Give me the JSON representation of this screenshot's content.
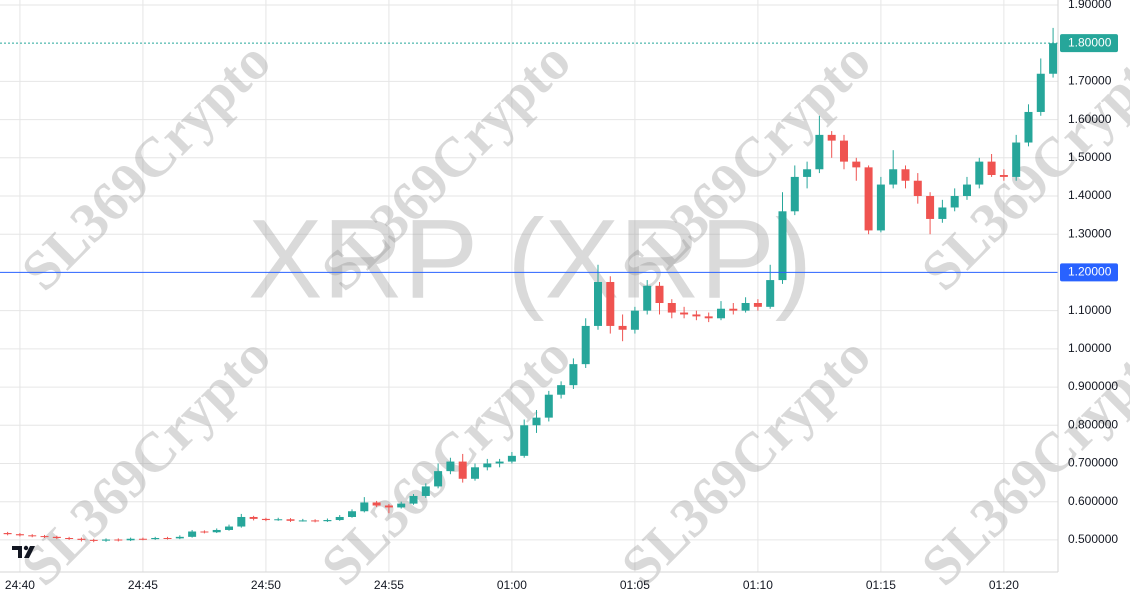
{
  "chart_data": {
    "type": "candlestick",
    "watermark_title": "XRP (XRP)",
    "watermark": "SL369Crypto",
    "up_color": "#26a69a",
    "down_color": "#ef5350",
    "xlim": [
      -0.81,
      42.2
    ],
    "xticks": [
      {
        "value": 0,
        "label": "24:40"
      },
      {
        "value": 5,
        "label": "24:45"
      },
      {
        "value": 10,
        "label": "24:50"
      },
      {
        "value": 15,
        "label": "24:55"
      },
      {
        "value": 20,
        "label": "01:00"
      },
      {
        "value": 25,
        "label": "01:05"
      },
      {
        "value": 30,
        "label": "01:10"
      },
      {
        "value": 35,
        "label": "01:15"
      },
      {
        "value": 40,
        "label": "01:20"
      }
    ],
    "ylim": [
      0.416,
      1.913
    ],
    "yticks": [
      {
        "value": 1.9,
        "label": "1.90000"
      },
      {
        "value": 1.7,
        "label": "1.70000"
      },
      {
        "value": 1.6,
        "label": "1.60000"
      },
      {
        "value": 1.5,
        "label": "1.50000"
      },
      {
        "value": 1.4,
        "label": "1.40000"
      },
      {
        "value": 1.3,
        "label": "1.30000"
      },
      {
        "value": 1.1,
        "label": "1.10000"
      },
      {
        "value": 1.0,
        "label": "1.00000"
      },
      {
        "value": 0.9,
        "label": "0.900000"
      },
      {
        "value": 0.8,
        "label": "0.800000"
      },
      {
        "value": 0.7,
        "label": "0.700000"
      },
      {
        "value": 0.6,
        "label": "0.600000"
      },
      {
        "value": 0.5,
        "label": "0.500000"
      }
    ],
    "grid": true,
    "price_lines": [
      {
        "value": 1.8,
        "label": "1.80000",
        "color": "#26a69a",
        "style": "dashed"
      },
      {
        "value": 1.2,
        "label": "1.20000",
        "color": "#2962ff",
        "style": "solid"
      }
    ],
    "x": [
      -0.5,
      0,
      0.5,
      1,
      1.5,
      2,
      2.5,
      3,
      3.5,
      4,
      4.5,
      5,
      5.5,
      6,
      6.5,
      7,
      7.5,
      8,
      8.5,
      9,
      9.5,
      10,
      10.5,
      11,
      11.5,
      12,
      12.5,
      13,
      13.5,
      14,
      14.5,
      15,
      15.5,
      16,
      16.5,
      17,
      17.5,
      18,
      18.5,
      19,
      19.5,
      20,
      20.5,
      21,
      21.5,
      22,
      22.5,
      23,
      23.5,
      24,
      24.5,
      25,
      25.5,
      26,
      26.5,
      27,
      27.5,
      28,
      28.5,
      29,
      29.5,
      30,
      30.5,
      31,
      31.5,
      32,
      32.5,
      33,
      33.5,
      34,
      34.5,
      35,
      35.5,
      36,
      36.5,
      37,
      37.5,
      38,
      38.5,
      39,
      39.5,
      40,
      40.5,
      41,
      41.5,
      42
    ],
    "ohlc": [
      [
        0.518,
        0.521,
        0.512,
        0.515
      ],
      [
        0.515,
        0.518,
        0.509,
        0.512
      ],
      [
        0.512,
        0.515,
        0.507,
        0.51
      ],
      [
        0.51,
        0.513,
        0.505,
        0.508
      ],
      [
        0.508,
        0.511,
        0.502,
        0.505
      ],
      [
        0.505,
        0.508,
        0.5,
        0.503
      ],
      [
        0.503,
        0.506,
        0.496,
        0.5
      ],
      [
        0.5,
        0.503,
        0.494,
        0.498
      ],
      [
        0.498,
        0.504,
        0.495,
        0.501
      ],
      [
        0.501,
        0.504,
        0.496,
        0.499
      ],
      [
        0.499,
        0.506,
        0.497,
        0.503
      ],
      [
        0.503,
        0.506,
        0.499,
        0.502
      ],
      [
        0.502,
        0.508,
        0.5,
        0.505
      ],
      [
        0.505,
        0.508,
        0.501,
        0.504
      ],
      [
        0.504,
        0.512,
        0.502,
        0.508
      ],
      [
        0.508,
        0.526,
        0.506,
        0.522
      ],
      [
        0.522,
        0.525,
        0.517,
        0.52
      ],
      [
        0.52,
        0.53,
        0.518,
        0.526
      ],
      [
        0.526,
        0.54,
        0.524,
        0.535
      ],
      [
        0.535,
        0.568,
        0.532,
        0.56
      ],
      [
        0.56,
        0.563,
        0.551,
        0.555
      ],
      [
        0.555,
        0.558,
        0.549,
        0.552
      ],
      [
        0.552,
        0.558,
        0.55,
        0.554
      ],
      [
        0.554,
        0.557,
        0.547,
        0.55
      ],
      [
        0.55,
        0.555,
        0.548,
        0.551
      ],
      [
        0.551,
        0.554,
        0.546,
        0.549
      ],
      [
        0.549,
        0.556,
        0.547,
        0.552
      ],
      [
        0.552,
        0.565,
        0.55,
        0.56
      ],
      [
        0.56,
        0.58,
        0.558,
        0.575
      ],
      [
        0.575,
        0.612,
        0.572,
        0.598
      ],
      [
        0.598,
        0.602,
        0.586,
        0.59
      ],
      [
        0.59,
        0.594,
        0.57,
        0.585
      ],
      [
        0.585,
        0.6,
        0.582,
        0.595
      ],
      [
        0.595,
        0.62,
        0.592,
        0.615
      ],
      [
        0.615,
        0.648,
        0.61,
        0.64
      ],
      [
        0.64,
        0.7,
        0.635,
        0.68
      ],
      [
        0.68,
        0.715,
        0.672,
        0.705
      ],
      [
        0.705,
        0.725,
        0.65,
        0.66
      ],
      [
        0.66,
        0.7,
        0.655,
        0.69
      ],
      [
        0.69,
        0.712,
        0.682,
        0.7
      ],
      [
        0.7,
        0.712,
        0.69,
        0.705
      ],
      [
        0.705,
        0.73,
        0.7,
        0.72
      ],
      [
        0.72,
        0.815,
        0.715,
        0.8
      ],
      [
        0.8,
        0.84,
        0.78,
        0.82
      ],
      [
        0.82,
        0.89,
        0.81,
        0.88
      ],
      [
        0.88,
        0.915,
        0.87,
        0.905
      ],
      [
        0.905,
        0.975,
        0.895,
        0.96
      ],
      [
        0.96,
        1.08,
        0.95,
        1.06
      ],
      [
        1.06,
        1.22,
        1.05,
        1.175
      ],
      [
        1.175,
        1.19,
        1.04,
        1.06
      ],
      [
        1.06,
        1.09,
        1.02,
        1.05
      ],
      [
        1.05,
        1.11,
        1.04,
        1.1
      ],
      [
        1.1,
        1.18,
        1.09,
        1.165
      ],
      [
        1.165,
        1.175,
        1.09,
        1.12
      ],
      [
        1.12,
        1.13,
        1.08,
        1.095
      ],
      [
        1.095,
        1.11,
        1.08,
        1.09
      ],
      [
        1.09,
        1.1,
        1.075,
        1.085
      ],
      [
        1.085,
        1.095,
        1.07,
        1.08
      ],
      [
        1.08,
        1.125,
        1.075,
        1.105
      ],
      [
        1.105,
        1.12,
        1.09,
        1.1
      ],
      [
        1.1,
        1.135,
        1.095,
        1.12
      ],
      [
        1.12,
        1.13,
        1.1,
        1.11
      ],
      [
        1.11,
        1.22,
        1.105,
        1.18
      ],
      [
        1.18,
        1.41,
        1.17,
        1.36
      ],
      [
        1.36,
        1.48,
        1.35,
        1.45
      ],
      [
        1.45,
        1.49,
        1.42,
        1.47
      ],
      [
        1.47,
        1.61,
        1.46,
        1.56
      ],
      [
        1.56,
        1.57,
        1.5,
        1.545
      ],
      [
        1.545,
        1.56,
        1.47,
        1.49
      ],
      [
        1.49,
        1.5,
        1.44,
        1.475
      ],
      [
        1.475,
        1.48,
        1.3,
        1.31
      ],
      [
        1.31,
        1.45,
        1.305,
        1.43
      ],
      [
        1.43,
        1.52,
        1.42,
        1.47
      ],
      [
        1.47,
        1.48,
        1.42,
        1.44
      ],
      [
        1.44,
        1.46,
        1.38,
        1.4
      ],
      [
        1.4,
        1.41,
        1.3,
        1.34
      ],
      [
        1.34,
        1.39,
        1.33,
        1.37
      ],
      [
        1.37,
        1.42,
        1.36,
        1.4
      ],
      [
        1.4,
        1.45,
        1.39,
        1.43
      ],
      [
        1.43,
        1.5,
        1.42,
        1.49
      ],
      [
        1.49,
        1.51,
        1.45,
        1.455
      ],
      [
        1.455,
        1.47,
        1.44,
        1.45
      ],
      [
        1.45,
        1.56,
        1.44,
        1.54
      ],
      [
        1.54,
        1.64,
        1.53,
        1.62
      ],
      [
        1.62,
        1.76,
        1.61,
        1.72
      ],
      [
        1.72,
        1.84,
        1.71,
        1.8
      ]
    ]
  }
}
